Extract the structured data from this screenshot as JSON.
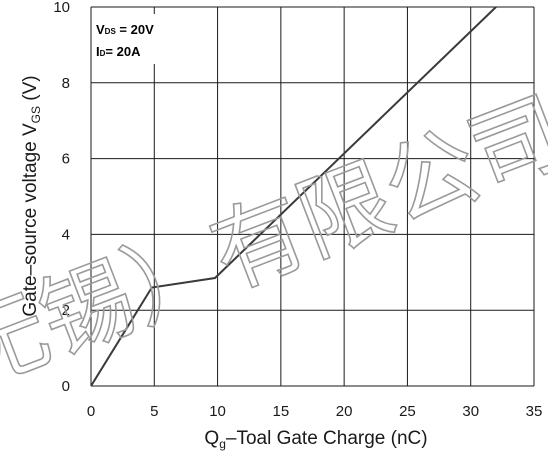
{
  "chart_data": {
    "type": "line",
    "xlabel_main": "Q",
    "xlabel_sub": "g",
    "xlabel_rest": "–Toal Gate Charge  (nC)",
    "ylabel_main": "Gate–source voltage V",
    "ylabel_sub": "GS",
    "ylabel_unit": " (V)",
    "xlim": [
      0,
      35
    ],
    "ylim": [
      0,
      10
    ],
    "x_ticks": [
      0,
      5,
      10,
      15,
      20,
      25,
      30,
      35
    ],
    "y_ticks": [
      0,
      2,
      4,
      6,
      8,
      10
    ],
    "grid": true,
    "conditions": [
      {
        "main": "V",
        "sub": "DS",
        "rest": " = 20V"
      },
      {
        "main": "I",
        "sub": "D",
        "rest": "= 20A"
      }
    ],
    "series": [
      {
        "x": [
          0,
          4.8,
          9.8,
          32
        ],
        "y": [
          0,
          2.6,
          2.85,
          10
        ]
      }
    ],
    "line_color": "#3a3a3a",
    "grid_color": "#1a1a1a"
  },
  "watermark": "无锡）有限公司"
}
